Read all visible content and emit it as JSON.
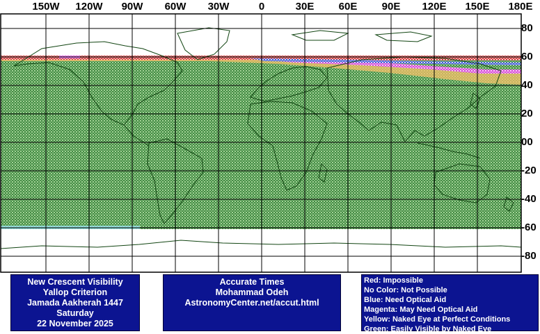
{
  "map": {
    "lon_labels": [
      "150W",
      "120W",
      "90W",
      "60W",
      "30W",
      "0",
      "30E",
      "60E",
      "90E",
      "120E",
      "150E",
      "180E"
    ],
    "lat_labels": [
      "80",
      "60",
      "40",
      "20",
      "00",
      "-20",
      "-40",
      "-60",
      "-80"
    ],
    "colors": {
      "green": "#2e7d32",
      "green_fill": "#a8d59a",
      "red": "#d02020",
      "blue": "#2040d0",
      "magenta": "#e040e0",
      "yellow": "#f5c26a",
      "cyan": "#9be3f0",
      "coast": "#114411",
      "grid": "#000000"
    },
    "zones_description_keys": [
      "green",
      "yellow",
      "magenta",
      "blue",
      "red"
    ]
  },
  "panel_left": {
    "line1": "New Crescent Visibility",
    "line2": "Yallop Criterion",
    "line3": "Jamada Aakherah 1447",
    "line4": "Saturday",
    "line5": "22 November 2025"
  },
  "panel_middle": {
    "line1": "Accurate Times",
    "line2": "Mohammad Odeh",
    "line3": "AstronomyCenter.net/accut.html"
  },
  "legend": {
    "red": "Red: Impossible",
    "none": "No Color: Not Possible",
    "blue": "Blue: Need Optical Aid",
    "magenta": "Magenta: May Need Optical Aid",
    "yellow": "Yellow: Naked Eye at Perfect Conditions",
    "green": "Green: Easily Visible by Naked Eye"
  }
}
